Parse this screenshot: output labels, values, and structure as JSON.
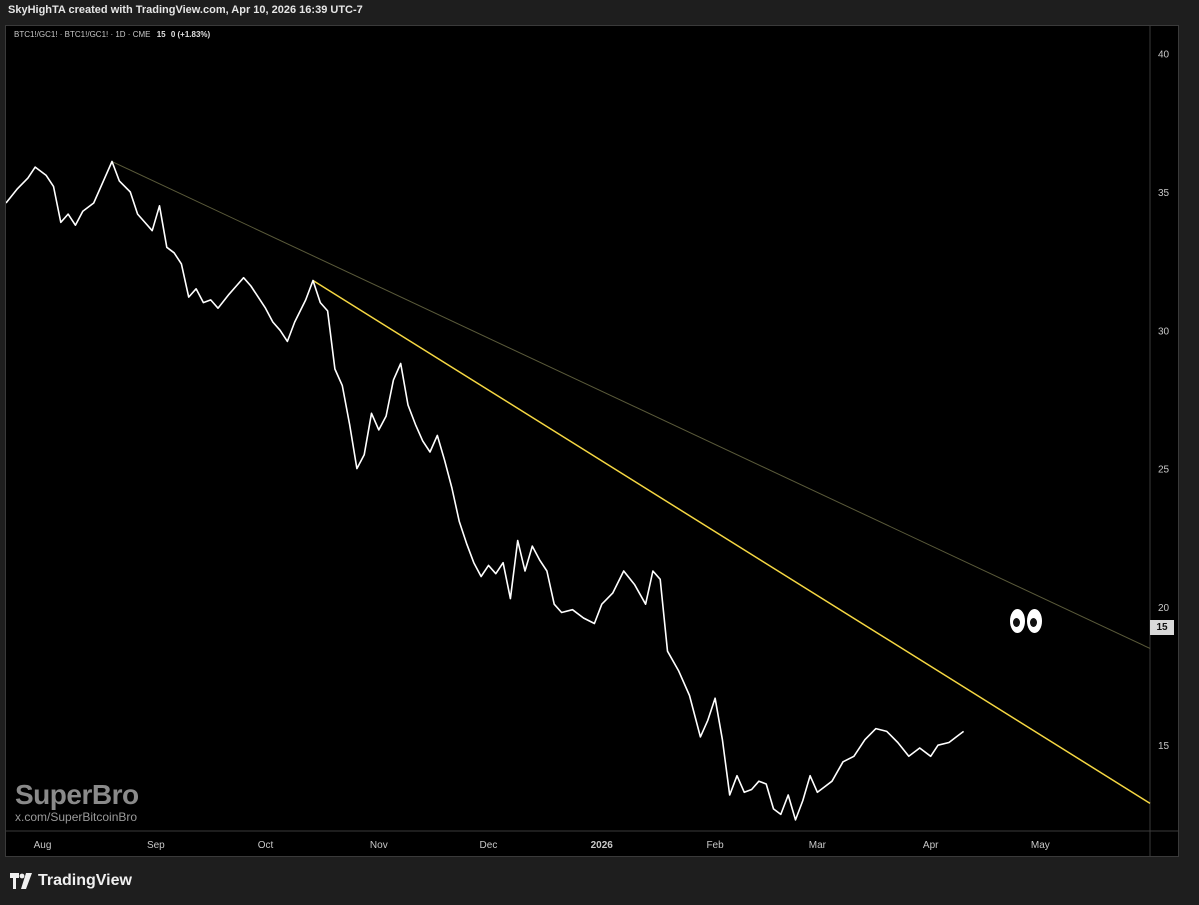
{
  "header": {
    "text": "SkyHighTA created with TradingView.com, Apr 10, 2026 16:39 UTC-7"
  },
  "symbol_info": {
    "label": "BTC1!/GC1! · BTC1!/GC1! · 1D · CME",
    "value": "15",
    "change": "0 (+1.83%)"
  },
  "watermark": {
    "name": "SuperBro",
    "url": "x.com/SuperBitcoinBro"
  },
  "footer": {
    "brand": "TradingView"
  },
  "price_label": "15",
  "colors": {
    "background": "#000000",
    "frame": "#1e1e1e",
    "price_line": "#ffffff",
    "main_trendline": "#f5d742",
    "upper_trendline": "#5a5a3a"
  },
  "chart_data": {
    "type": "line",
    "title": "",
    "xlabel": "",
    "ylabel": "",
    "x_ticks": [
      {
        "label": "Aug",
        "date": "2025-08-01"
      },
      {
        "label": "Sep",
        "date": "2025-09-01"
      },
      {
        "label": "Oct",
        "date": "2025-10-01"
      },
      {
        "label": "Nov",
        "date": "2025-11-01"
      },
      {
        "label": "Dec",
        "date": "2025-12-01"
      },
      {
        "label": "2026",
        "date": "2026-01-01"
      },
      {
        "label": "Feb",
        "date": "2026-02-01"
      },
      {
        "label": "Mar",
        "date": "2026-03-01"
      },
      {
        "label": "Apr",
        "date": "2026-04-01"
      },
      {
        "label": "May",
        "date": "2026-05-01"
      }
    ],
    "y_ticks": [
      40,
      35,
      30,
      25,
      20,
      15
    ],
    "ylim": [
      11.9,
      41
    ],
    "xlim": [
      "2025-07-22",
      "2026-05-31"
    ],
    "series": [
      {
        "values": [
          [
            "2025-07-22",
            34.6
          ],
          [
            "2025-07-25",
            35.1
          ],
          [
            "2025-07-28",
            35.5
          ],
          [
            "2025-07-30",
            35.9
          ],
          [
            "2025-08-02",
            35.6
          ],
          [
            "2025-08-04",
            35.2
          ],
          [
            "2025-08-06",
            33.9
          ],
          [
            "2025-08-08",
            34.2
          ],
          [
            "2025-08-10",
            33.8
          ],
          [
            "2025-08-12",
            34.3
          ],
          [
            "2025-08-15",
            34.6
          ],
          [
            "2025-08-18",
            35.5
          ],
          [
            "2025-08-20",
            36.1
          ],
          [
            "2025-08-22",
            35.4
          ],
          [
            "2025-08-25",
            35.0
          ],
          [
            "2025-08-27",
            34.2
          ],
          [
            "2025-08-29",
            33.9
          ],
          [
            "2025-08-31",
            33.6
          ],
          [
            "2025-09-02",
            34.5
          ],
          [
            "2025-09-04",
            33.0
          ],
          [
            "2025-09-06",
            32.8
          ],
          [
            "2025-09-08",
            32.4
          ],
          [
            "2025-09-10",
            31.2
          ],
          [
            "2025-09-12",
            31.5
          ],
          [
            "2025-09-14",
            31.0
          ],
          [
            "2025-09-16",
            31.1
          ],
          [
            "2025-09-18",
            30.8
          ],
          [
            "2025-09-21",
            31.3
          ],
          [
            "2025-09-23",
            31.6
          ],
          [
            "2025-09-25",
            31.9
          ],
          [
            "2025-09-27",
            31.6
          ],
          [
            "2025-09-29",
            31.2
          ],
          [
            "2025-10-01",
            30.8
          ],
          [
            "2025-10-03",
            30.3
          ],
          [
            "2025-10-05",
            30.0
          ],
          [
            "2025-10-07",
            29.6
          ],
          [
            "2025-10-09",
            30.3
          ],
          [
            "2025-10-12",
            31.1
          ],
          [
            "2025-10-14",
            31.8
          ],
          [
            "2025-10-16",
            31.0
          ],
          [
            "2025-10-18",
            30.7
          ],
          [
            "2025-10-20",
            28.6
          ],
          [
            "2025-10-22",
            28.0
          ],
          [
            "2025-10-24",
            26.6
          ],
          [
            "2025-10-26",
            25.0
          ],
          [
            "2025-10-28",
            25.5
          ],
          [
            "2025-10-30",
            27.0
          ],
          [
            "2025-11-01",
            26.4
          ],
          [
            "2025-11-03",
            26.9
          ],
          [
            "2025-11-05",
            28.2
          ],
          [
            "2025-11-07",
            28.8
          ],
          [
            "2025-11-09",
            27.3
          ],
          [
            "2025-11-11",
            26.6
          ],
          [
            "2025-11-13",
            26.0
          ],
          [
            "2025-11-15",
            25.6
          ],
          [
            "2025-11-17",
            26.2
          ],
          [
            "2025-11-19",
            25.3
          ],
          [
            "2025-11-21",
            24.3
          ],
          [
            "2025-11-23",
            23.1
          ],
          [
            "2025-11-25",
            22.3
          ],
          [
            "2025-11-27",
            21.6
          ],
          [
            "2025-11-29",
            21.1
          ],
          [
            "2025-12-01",
            21.5
          ],
          [
            "2025-12-03",
            21.2
          ],
          [
            "2025-12-05",
            21.6
          ],
          [
            "2025-12-07",
            20.3
          ],
          [
            "2025-12-09",
            22.4
          ],
          [
            "2025-12-11",
            21.3
          ],
          [
            "2025-12-13",
            22.2
          ],
          [
            "2025-12-15",
            21.7
          ],
          [
            "2025-12-17",
            21.3
          ],
          [
            "2025-12-19",
            20.1
          ],
          [
            "2025-12-21",
            19.8
          ],
          [
            "2025-12-24",
            19.9
          ],
          [
            "2025-12-27",
            19.6
          ],
          [
            "2025-12-30",
            19.4
          ],
          [
            "2026-01-01",
            20.1
          ],
          [
            "2026-01-04",
            20.5
          ],
          [
            "2026-01-07",
            21.3
          ],
          [
            "2026-01-10",
            20.8
          ],
          [
            "2026-01-13",
            20.1
          ],
          [
            "2026-01-15",
            21.3
          ],
          [
            "2026-01-17",
            21.0
          ],
          [
            "2026-01-19",
            18.4
          ],
          [
            "2026-01-22",
            17.7
          ],
          [
            "2026-01-25",
            16.8
          ],
          [
            "2026-01-28",
            15.3
          ],
          [
            "2026-01-30",
            15.9
          ],
          [
            "2026-02-01",
            16.7
          ],
          [
            "2026-02-03",
            15.2
          ],
          [
            "2026-02-05",
            13.2
          ],
          [
            "2026-02-07",
            13.9
          ],
          [
            "2026-02-09",
            13.3
          ],
          [
            "2026-02-11",
            13.4
          ],
          [
            "2026-02-13",
            13.7
          ],
          [
            "2026-02-15",
            13.6
          ],
          [
            "2026-02-17",
            12.7
          ],
          [
            "2026-02-19",
            12.5
          ],
          [
            "2026-02-21",
            13.2
          ],
          [
            "2026-02-23",
            12.3
          ],
          [
            "2026-02-25",
            13.0
          ],
          [
            "2026-02-27",
            13.9
          ],
          [
            "2026-03-01",
            13.3
          ],
          [
            "2026-03-03",
            13.5
          ],
          [
            "2026-03-05",
            13.7
          ],
          [
            "2026-03-08",
            14.4
          ],
          [
            "2026-03-11",
            14.6
          ],
          [
            "2026-03-14",
            15.2
          ],
          [
            "2026-03-17",
            15.6
          ],
          [
            "2026-03-20",
            15.5
          ],
          [
            "2026-03-23",
            15.1
          ],
          [
            "2026-03-26",
            14.6
          ],
          [
            "2026-03-29",
            14.9
          ],
          [
            "2026-04-01",
            14.6
          ],
          [
            "2026-04-03",
            15.0
          ],
          [
            "2026-04-06",
            15.1
          ],
          [
            "2026-04-08",
            15.3
          ],
          [
            "2026-04-10",
            15.5
          ]
        ]
      }
    ],
    "trendlines": [
      {
        "color": "#f5d742",
        "from": [
          "2025-10-14",
          31.8
        ],
        "to": [
          "2026-05-31",
          12.9
        ]
      },
      {
        "color": "#5a5a3a",
        "from": [
          "2025-08-20",
          36.1
        ],
        "to": [
          "2026-05-31",
          18.5
        ]
      }
    ],
    "grid": false,
    "legend": "none"
  }
}
